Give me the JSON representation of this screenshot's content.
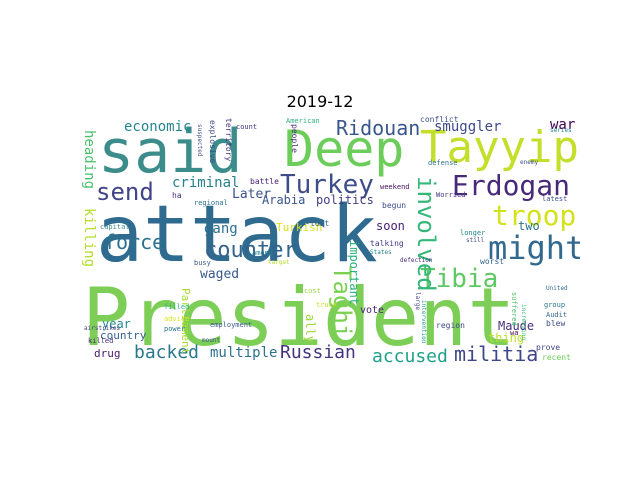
{
  "title": "2019-12",
  "words": [
    {
      "text": "attack",
      "color": "#2f6a8f"
    },
    {
      "text": "President",
      "color": "#7dce57"
    },
    {
      "text": "said",
      "color": "#3b8c8a"
    },
    {
      "text": "Deep",
      "color": "#6ccd5a"
    },
    {
      "text": "Tayyip",
      "color": "#c4df2a"
    },
    {
      "text": "Erdogan",
      "color": "#482979"
    },
    {
      "text": "Turkey",
      "color": "#3d4d8a"
    },
    {
      "text": "troop",
      "color": "#d2e21b"
    },
    {
      "text": "might",
      "color": "#31688e"
    },
    {
      "text": "send",
      "color": "#414487"
    },
    {
      "text": "Ridouan",
      "color": "#39568c"
    },
    {
      "text": "Taghi",
      "color": "#7ad151"
    },
    {
      "text": "Tibia",
      "color": "#5ec962"
    },
    {
      "text": "involved",
      "color": "#35b779"
    },
    {
      "text": "counter",
      "color": "#33638d"
    },
    {
      "text": "force",
      "color": "#2c728e"
    },
    {
      "text": "militia",
      "color": "#3f4788"
    },
    {
      "text": "Russian",
      "color": "#46337e"
    },
    {
      "text": "accused",
      "color": "#1fa188"
    },
    {
      "text": "backed",
      "color": "#2a788e"
    },
    {
      "text": "criminal",
      "color": "#27808e"
    },
    {
      "text": "economic",
      "color": "#25848e"
    },
    {
      "text": "smuggler",
      "color": "#3e4989"
    },
    {
      "text": "war",
      "color": "#440154"
    },
    {
      "text": "heading",
      "color": "#4ac16d"
    },
    {
      "text": "killing",
      "color": "#b5de2b"
    },
    {
      "text": "gang",
      "color": "#2d708e"
    },
    {
      "text": "waged",
      "color": "#38598c"
    },
    {
      "text": "Later",
      "color": "#3b528b"
    },
    {
      "text": "Arabia",
      "color": "#3a548c"
    },
    {
      "text": "politics",
      "color": "#433d84"
    },
    {
      "text": "Parliament",
      "color": "#a8db34"
    },
    {
      "text": "multiple",
      "color": "#2e6f8e"
    },
    {
      "text": "important",
      "color": "#29af7f"
    },
    {
      "text": "Maude",
      "color": "#472d7b"
    },
    {
      "text": "thing",
      "color": "#bddf26"
    },
    {
      "text": "two",
      "color": "#2c738e"
    },
    {
      "text": "soon",
      "color": "#482173"
    },
    {
      "text": "year",
      "color": "#24878e"
    },
    {
      "text": "country",
      "color": "#355e8d"
    },
    {
      "text": "drug",
      "color": "#481b6d"
    },
    {
      "text": "vote",
      "color": "#482576"
    },
    {
      "text": "Turkish",
      "color": "#d8e219"
    },
    {
      "text": "ally",
      "color": "#9dd93b"
    },
    {
      "text": "explosive",
      "color": "#3e4a89"
    },
    {
      "text": "territory",
      "color": "#46307e"
    },
    {
      "text": "people",
      "color": "#472a7a"
    },
    {
      "text": "American",
      "color": "#2db27d"
    },
    {
      "text": "conflict",
      "color": "#3b518b"
    },
    {
      "text": "series",
      "color": "#26828e"
    },
    {
      "text": "battle",
      "color": "#481f70"
    },
    {
      "text": "weekend",
      "color": "#471063"
    },
    {
      "text": "defense",
      "color": "#2c718e"
    },
    {
      "text": "enemy",
      "color": "#3d4e8a"
    },
    {
      "text": "Worried",
      "color": "#453581"
    },
    {
      "text": "latest",
      "color": "#3d4d8a"
    },
    {
      "text": "begun",
      "color": "#3e4c8a"
    },
    {
      "text": "longer",
      "color": "#23898e"
    },
    {
      "text": "talking",
      "color": "#443983"
    },
    {
      "text": "States",
      "color": "#24868e"
    },
    {
      "text": "worst",
      "color": "#32658e"
    },
    {
      "text": "group",
      "color": "#2a768e"
    },
    {
      "text": "United",
      "color": "#2e6e8e"
    },
    {
      "text": "Audit",
      "color": "#31678e"
    },
    {
      "text": "blew",
      "color": "#3f4788"
    },
    {
      "text": "prove",
      "color": "#414487"
    },
    {
      "text": "recent",
      "color": "#6ece58"
    },
    {
      "text": "region",
      "color": "#3e4989"
    },
    {
      "text": "wa",
      "color": "#440154"
    },
    {
      "text": "employment",
      "color": "#38588c"
    },
    {
      "text": "power",
      "color": "#2a788e"
    },
    {
      "text": "killed",
      "color": "#482878"
    },
    {
      "text": "airstrikes",
      "color": "#433e85"
    },
    {
      "text": "capital",
      "color": "#3b8c8a"
    },
    {
      "text": "regional",
      "color": "#2c728e"
    },
    {
      "text": "busy",
      "color": "#39568c"
    },
    {
      "text": "filled",
      "color": "#2ab07f"
    },
    {
      "text": "truck",
      "color": "#c2df23"
    },
    {
      "text": "cost",
      "color": "#9bd93c"
    },
    {
      "text": "lost",
      "color": "#32648e"
    },
    {
      "text": "among",
      "color": "#25838e"
    },
    {
      "text": "count",
      "color": "#453781"
    },
    {
      "text": "suspected",
      "color": "#3e4989"
    },
    {
      "text": "ha",
      "color": "#472f7d"
    },
    {
      "text": "s",
      "color": "#2c738e"
    },
    {
      "text": "defection",
      "color": "#472d7b"
    },
    {
      "text": "still",
      "color": "#3f4889"
    },
    {
      "text": "suffered",
      "color": "#4ec36b"
    },
    {
      "text": "increasing",
      "color": "#3fbc73"
    },
    {
      "text": "large",
      "color": "#433e85"
    },
    {
      "text": "intervention",
      "color": "#20a386"
    },
    {
      "text": "advice",
      "color": "#d8e219"
    },
    {
      "text": "mount",
      "color": "#3a548c"
    },
    {
      "text": "target",
      "color": "#b8de29"
    }
  ]
}
